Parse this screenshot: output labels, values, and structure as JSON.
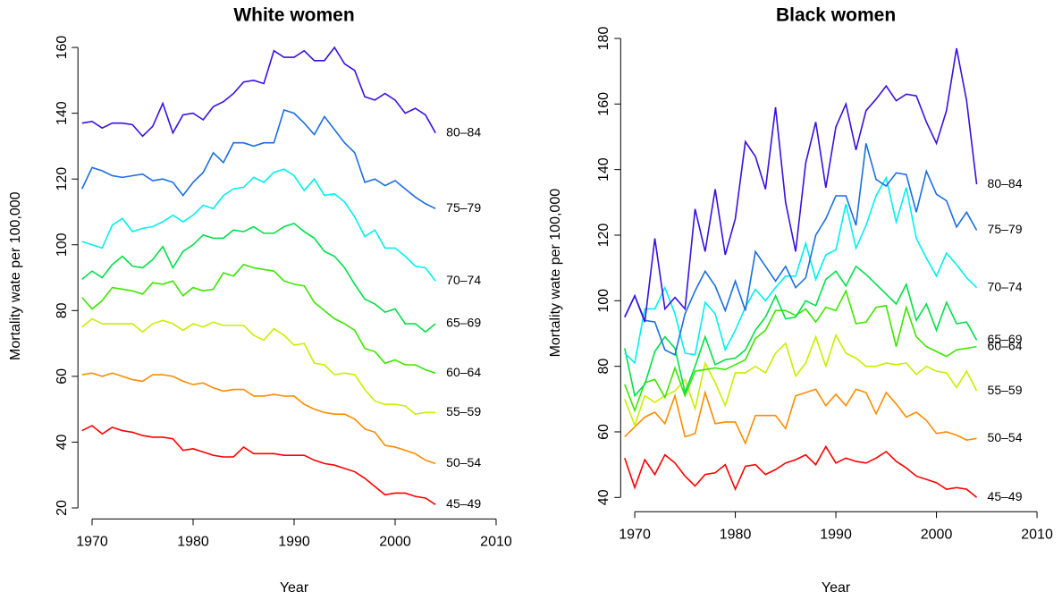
{
  "chart_data": [
    {
      "type": "line",
      "title": "White women",
      "xlabel": "Year",
      "ylabel": "Mortality wate per 100,000",
      "x": [
        1969,
        1970,
        1971,
        1972,
        1973,
        1974,
        1975,
        1976,
        1977,
        1978,
        1979,
        1980,
        1981,
        1982,
        1983,
        1984,
        1985,
        1986,
        1987,
        1988,
        1989,
        1990,
        1991,
        1992,
        1993,
        1994,
        1995,
        1996,
        1997,
        1998,
        1999,
        2000,
        2001,
        2002,
        2003,
        2004
      ],
      "xlim": [
        1968.6,
        2011.4
      ],
      "xticks": [
        1970,
        1980,
        1990,
        2000,
        2010
      ],
      "ylim": [
        15,
        166
      ],
      "yticks": [
        20,
        40,
        60,
        80,
        100,
        120,
        140,
        160
      ],
      "series": [
        {
          "name": "45–49",
          "color": "#ff0000",
          "values": [
            43.5,
            45,
            42.5,
            44.5,
            43.5,
            43,
            42,
            41.5,
            41.5,
            41,
            37.5,
            38,
            37,
            36,
            35.5,
            35.5,
            38.5,
            36.5,
            36.5,
            36.5,
            36,
            36,
            36,
            34.5,
            33.5,
            33,
            32,
            31,
            29,
            26.5,
            24,
            24.5,
            24.5,
            23.5,
            23,
            21
          ]
        },
        {
          "name": "50–54",
          "color": "#ff8c00",
          "values": [
            60.5,
            61,
            60,
            61,
            60,
            59,
            58.5,
            60.5,
            60.5,
            60,
            58.5,
            57.5,
            58,
            56.5,
            55.5,
            56,
            56,
            54,
            54,
            54.5,
            54,
            54,
            51.5,
            50,
            49,
            48.5,
            48.5,
            47,
            44,
            43,
            39,
            38.5,
            37.5,
            36.5,
            34.5,
            33.5
          ]
        },
        {
          "name": "55–59",
          "color": "#c8f000",
          "values": [
            75,
            77.5,
            76,
            76,
            76,
            76,
            73.5,
            76,
            77,
            76,
            74,
            76,
            75,
            76.5,
            75.5,
            75.5,
            75.5,
            72.5,
            71,
            74.5,
            72.5,
            69.5,
            70,
            64,
            63.5,
            60.5,
            61,
            60.5,
            56,
            52.5,
            51.5,
            51.5,
            51,
            48.5,
            49,
            49
          ]
        },
        {
          "name": "60–64",
          "color": "#3ce600",
          "values": [
            84,
            80.5,
            83,
            87,
            86.5,
            86,
            85,
            88.5,
            88,
            89,
            84.5,
            87,
            86,
            86.5,
            91.5,
            90.5,
            94,
            93,
            92.5,
            92,
            89,
            88,
            87.5,
            82.5,
            80,
            77.5,
            76,
            74,
            68.5,
            67.5,
            64,
            65,
            63.5,
            63.5,
            62,
            61
          ]
        },
        {
          "name": "65–69",
          "color": "#00e04a",
          "values": [
            89.5,
            92,
            90,
            94,
            96.5,
            93.5,
            93,
            95.5,
            99.5,
            93,
            98,
            100,
            103,
            102,
            102,
            104.5,
            104,
            105.5,
            103.5,
            103.5,
            105.5,
            106.5,
            104,
            102,
            98,
            96.5,
            93,
            88,
            83.5,
            82,
            79.5,
            80.5,
            76,
            76,
            73.5,
            76
          ]
        },
        {
          "name": "70–74",
          "color": "#00f0f0",
          "values": [
            101,
            100,
            99,
            106,
            108,
            104,
            105,
            105.5,
            107,
            109,
            107,
            109,
            112,
            111,
            115,
            117,
            117.5,
            120.5,
            119,
            122,
            123,
            121,
            116.5,
            120,
            115,
            115.5,
            113,
            108.5,
            102.5,
            104.5,
            99,
            99,
            96.5,
            93.5,
            93,
            89
          ]
        },
        {
          "name": "75–79",
          "color": "#1a6ee0",
          "values": [
            117,
            123.5,
            122.5,
            121,
            120.5,
            121,
            121.5,
            119.5,
            120,
            119,
            115,
            119,
            122,
            128,
            125,
            131,
            131,
            130,
            131,
            131,
            141,
            140,
            137,
            133.5,
            139,
            135,
            131,
            128,
            119,
            120,
            118,
            119.5,
            117,
            114.5,
            112.5,
            111
          ]
        },
        {
          "name": "80–84",
          "color": "#3a10e0",
          "values": [
            137,
            137.5,
            135.5,
            137,
            137,
            136.5,
            133,
            136,
            143,
            134,
            139.5,
            140,
            138,
            142,
            143.5,
            146,
            149.5,
            150,
            149,
            159,
            157,
            157,
            159,
            156,
            156,
            160,
            155,
            153,
            145,
            144,
            146,
            144,
            140,
            141.5,
            139.5,
            134
          ]
        }
      ]
    },
    {
      "type": "line",
      "title": "Black women",
      "xlabel": "Year",
      "ylabel": "Mortality wate per 100,000",
      "x": [
        1969,
        1970,
        1971,
        1972,
        1973,
        1974,
        1975,
        1976,
        1977,
        1978,
        1979,
        1980,
        1981,
        1982,
        1983,
        1984,
        1985,
        1986,
        1987,
        1988,
        1989,
        1990,
        1991,
        1992,
        1993,
        1994,
        1995,
        1996,
        1997,
        1998,
        1999,
        2000,
        2001,
        2002,
        2003,
        2004
      ],
      "xlim": [
        1968.6,
        2011.4
      ],
      "xticks": [
        1970,
        1980,
        1990,
        2000,
        2010
      ],
      "ylim": [
        34,
        183
      ],
      "yticks": [
        40,
        60,
        80,
        100,
        120,
        140,
        160,
        180
      ],
      "series": [
        {
          "name": "45–49",
          "color": "#ff0000",
          "values": [
            52,
            43,
            51.5,
            47,
            53,
            50.5,
            46.5,
            43.5,
            47,
            47.5,
            50,
            42.5,
            49.5,
            50,
            47,
            48.5,
            50.5,
            51.5,
            53,
            50,
            55.5,
            50.5,
            52,
            51,
            50.5,
            52,
            54,
            51,
            49,
            46.5,
            45.5,
            44.5,
            42.5,
            43,
            42.5,
            40
          ]
        },
        {
          "name": "50–54",
          "color": "#ff8c00",
          "values": [
            58.5,
            61.5,
            64.5,
            66,
            62.5,
            71,
            58.5,
            59.5,
            72,
            62.5,
            63,
            63,
            56.5,
            65,
            65,
            65,
            61,
            71,
            72,
            73,
            68,
            71.5,
            68,
            73,
            72,
            65.5,
            72,
            68.5,
            64.5,
            66,
            63.5,
            59.5,
            60,
            59,
            57.5,
            58
          ]
        },
        {
          "name": "55–59",
          "color": "#c8f000",
          "values": [
            70,
            62,
            71,
            69,
            71,
            72.5,
            76,
            67,
            81,
            75,
            68,
            78,
            78,
            80,
            78,
            84,
            87,
            77,
            81,
            89,
            80,
            89.5,
            84,
            82.5,
            80,
            80,
            81,
            80.5,
            81,
            77.5,
            80,
            78.5,
            78,
            73.5,
            78.5,
            72.5
          ]
        },
        {
          "name": "60–64",
          "color": "#3ce600",
          "values": [
            74.5,
            66.5,
            75,
            76,
            70.5,
            79.5,
            71,
            78.5,
            79,
            79.5,
            79,
            80.5,
            82,
            88.5,
            91,
            97,
            97,
            95.5,
            97.5,
            93.5,
            98,
            97,
            103,
            93,
            93.5,
            98,
            98.5,
            86,
            98,
            89,
            86,
            84.5,
            83,
            85,
            85.5,
            86
          ]
        },
        {
          "name": "65–69",
          "color": "#00e04a",
          "values": [
            85.5,
            71,
            74.5,
            84.5,
            89,
            85.5,
            72,
            80,
            89,
            80.5,
            82,
            82.5,
            85,
            91,
            95,
            101.5,
            94.5,
            95,
            100,
            98.5,
            106.5,
            109,
            104.5,
            110.5,
            108,
            105,
            102,
            99,
            105,
            94,
            99,
            91,
            99.5,
            93,
            93.5,
            88
          ]
        },
        {
          "name": "70–74",
          "color": "#00f0f0",
          "values": [
            84,
            81,
            97.5,
            97.5,
            104,
            96,
            84,
            83.5,
            99.5,
            96,
            85,
            91,
            98,
            103.5,
            100,
            104,
            107.5,
            107.5,
            117.5,
            106.5,
            114,
            115.5,
            129.5,
            116,
            123,
            132,
            137.5,
            124,
            134.5,
            119,
            113,
            107.5,
            114.5,
            111,
            107,
            104
          ]
        },
        {
          "name": "75–79",
          "color": "#1a6ee0",
          "values": [
            95,
            101.5,
            94,
            93.5,
            85,
            83.5,
            96,
            103,
            109,
            104.5,
            97,
            106,
            97,
            115,
            110.5,
            106,
            110.5,
            104,
            107,
            120,
            125,
            132,
            132,
            123,
            148,
            137,
            135,
            139,
            138.5,
            127,
            139.5,
            132.5,
            130.5,
            122.5,
            127,
            121.5
          ]
        },
        {
          "name": "80–84",
          "color": "#3a10e0",
          "values": [
            95,
            101.5,
            93.5,
            119,
            97.5,
            101,
            97.5,
            128,
            115,
            134,
            114,
            125,
            148.5,
            144,
            134,
            159,
            130,
            115,
            142,
            154.5,
            134.5,
            153,
            160,
            146,
            158,
            161.5,
            165.5,
            161,
            163,
            162.5,
            154.5,
            148,
            158,
            177,
            161,
            135.5
          ]
        }
      ]
    }
  ]
}
